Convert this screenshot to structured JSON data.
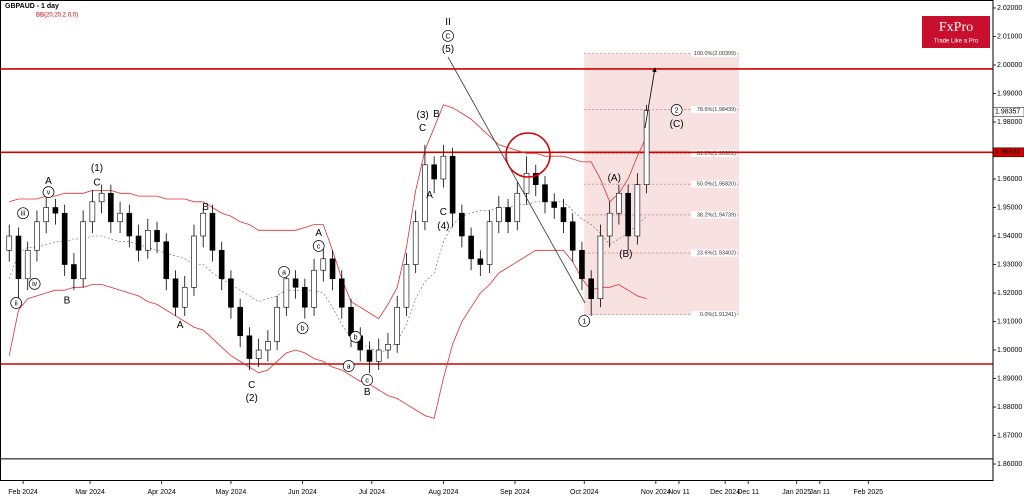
{
  "chart_data": {
    "type": "candlestick",
    "title": "GBPAUD - 1 day",
    "subtitle": "BB(20,20,2.0,0)",
    "logo": {
      "name": "FxPro",
      "tagline": "Trade Like a Pro"
    },
    "xlim": [
      "2024-01-22",
      "2025-03-27"
    ],
    "ylim": [
      1.8544,
      2.0228
    ],
    "xticks": [
      {
        "value": "2024-02-01",
        "label": "Feb 2024"
      },
      {
        "value": "2024-03-01",
        "label": "Mar 2024"
      },
      {
        "value": "2024-04-01",
        "label": "Apr 2024"
      },
      {
        "value": "2024-05-01",
        "label": "May 2024"
      },
      {
        "value": "2024-06-01",
        "label": "Jun 2024"
      },
      {
        "value": "2024-07-01",
        "label": "Jul 2024"
      },
      {
        "value": "2024-08-01",
        "label": "Aug 2024"
      },
      {
        "value": "2024-09-01",
        "label": "Sep 2024"
      },
      {
        "value": "2024-10-01",
        "label": "Oct 2024"
      },
      {
        "value": "2024-11-01",
        "label": "Nov 2024"
      },
      {
        "value": "2024-11-11",
        "label": "Nov 11"
      },
      {
        "value": "2024-12-01",
        "label": "Dec 2024"
      },
      {
        "value": "2024-12-11",
        "label": "Dec 11"
      },
      {
        "value": "2025-01-01",
        "label": "Jan 2025"
      },
      {
        "value": "2025-01-11",
        "label": "Jan 11"
      },
      {
        "value": "2025-02-01",
        "label": "Feb 2025"
      }
    ],
    "yticks": [
      {
        "value": 2.02,
        "label": "2.02000"
      },
      {
        "value": 2.01,
        "label": "2.01000"
      },
      {
        "value": 2.0,
        "label": "2.00000"
      },
      {
        "value": 1.99,
        "label": "1.99000"
      },
      {
        "value": 1.98,
        "label": "1.98000"
      },
      {
        "value": 1.97,
        "label": "1.97000"
      },
      {
        "value": 1.96,
        "label": "1.96000"
      },
      {
        "value": 1.95,
        "label": "1.95000"
      },
      {
        "value": 1.94,
        "label": "1.94000"
      },
      {
        "value": 1.93,
        "label": "1.93000"
      },
      {
        "value": 1.92,
        "label": "1.92000"
      },
      {
        "value": 1.91,
        "label": "1.91000"
      },
      {
        "value": 1.9,
        "label": "1.90000"
      },
      {
        "value": 1.89,
        "label": "1.89000"
      },
      {
        "value": 1.88,
        "label": "1.88000"
      },
      {
        "value": 1.87,
        "label": "1.87000"
      },
      {
        "value": 1.86,
        "label": "1.86000"
      }
    ],
    "x": [
      "2024-01-26",
      "2024-01-30",
      "2024-02-03",
      "2024-02-07",
      "2024-02-11",
      "2024-02-15",
      "2024-02-19",
      "2024-02-23",
      "2024-02-27",
      "2024-03-02",
      "2024-03-06",
      "2024-03-10",
      "2024-03-14",
      "2024-03-18",
      "2024-03-22",
      "2024-03-26",
      "2024-03-30",
      "2024-04-03",
      "2024-04-07",
      "2024-04-11",
      "2024-04-15",
      "2024-04-19",
      "2024-04-23",
      "2024-04-27",
      "2024-05-01",
      "2024-05-05",
      "2024-05-09",
      "2024-05-13",
      "2024-05-17",
      "2024-05-21",
      "2024-05-25",
      "2024-05-29",
      "2024-06-02",
      "2024-06-06",
      "2024-06-10",
      "2024-06-14",
      "2024-06-18",
      "2024-06-22",
      "2024-06-26",
      "2024-06-30",
      "2024-07-04",
      "2024-07-08",
      "2024-07-12",
      "2024-07-16",
      "2024-07-20",
      "2024-07-24",
      "2024-07-28",
      "2024-08-01",
      "2024-08-05",
      "2024-08-09",
      "2024-08-13",
      "2024-08-17",
      "2024-08-21",
      "2024-08-25",
      "2024-08-29",
      "2024-09-02",
      "2024-09-06",
      "2024-09-10",
      "2024-09-14",
      "2024-09-18",
      "2024-09-22",
      "2024-09-26",
      "2024-09-30",
      "2024-10-04",
      "2024-10-08",
      "2024-10-12",
      "2024-10-16",
      "2024-10-20",
      "2024-10-24",
      "2024-10-28"
    ],
    "open": [
      1.935,
      1.94,
      1.925,
      1.935,
      1.945,
      1.95,
      1.948,
      1.93,
      1.925,
      1.945,
      1.952,
      1.955,
      1.945,
      1.948,
      1.94,
      1.935,
      1.942,
      1.938,
      1.925,
      1.915,
      1.922,
      1.94,
      1.948,
      1.935,
      1.925,
      1.915,
      1.905,
      1.897,
      1.9,
      1.903,
      1.915,
      1.925,
      1.922,
      1.915,
      1.928,
      1.932,
      1.925,
      1.915,
      1.905,
      1.9,
      1.896,
      1.9,
      1.902,
      1.915,
      1.93,
      1.945,
      1.965,
      1.96,
      1.968,
      1.948,
      1.94,
      1.932,
      1.93,
      1.945,
      1.95,
      1.945,
      1.955,
      1.962,
      1.958,
      1.952,
      1.95,
      1.945,
      1.935,
      1.925,
      1.918,
      1.94,
      1.948,
      1.955,
      1.94,
      1.958
    ],
    "high": [
      1.944,
      1.943,
      1.938,
      1.949,
      1.956,
      1.953,
      1.951,
      1.934,
      1.949,
      1.956,
      1.958,
      1.958,
      1.952,
      1.951,
      1.944,
      1.946,
      1.945,
      1.941,
      1.928,
      1.926,
      1.944,
      1.95,
      1.951,
      1.938,
      1.928,
      1.918,
      1.908,
      1.904,
      1.907,
      1.919,
      1.929,
      1.928,
      1.925,
      1.932,
      1.937,
      1.935,
      1.928,
      1.918,
      1.908,
      1.903,
      1.904,
      1.906,
      1.919,
      1.934,
      1.949,
      1.972,
      1.968,
      1.972,
      1.971,
      1.951,
      1.943,
      1.935,
      1.949,
      1.954,
      1.953,
      1.959,
      1.968,
      1.965,
      1.961,
      1.955,
      1.953,
      1.948,
      1.938,
      1.928,
      1.944,
      1.952,
      1.958,
      1.958,
      1.962,
      1.986
    ],
    "low": [
      1.931,
      1.918,
      1.921,
      1.931,
      1.941,
      1.944,
      1.926,
      1.921,
      1.922,
      1.941,
      1.948,
      1.941,
      1.941,
      1.936,
      1.931,
      1.932,
      1.934,
      1.921,
      1.912,
      1.912,
      1.919,
      1.936,
      1.931,
      1.921,
      1.911,
      1.901,
      1.893,
      1.894,
      1.896,
      1.9,
      1.912,
      1.918,
      1.911,
      1.912,
      1.924,
      1.921,
      1.911,
      1.901,
      1.896,
      1.892,
      1.893,
      1.897,
      1.899,
      1.912,
      1.927,
      1.942,
      1.955,
      1.957,
      1.943,
      1.936,
      1.928,
      1.926,
      1.927,
      1.941,
      1.941,
      1.942,
      1.951,
      1.954,
      1.948,
      1.946,
      1.941,
      1.931,
      1.921,
      1.912,
      1.915,
      1.936,
      1.944,
      1.935,
      1.937,
      1.955
    ],
    "close": [
      1.94,
      1.925,
      1.935,
      1.945,
      1.95,
      1.948,
      1.93,
      1.925,
      1.945,
      1.952,
      1.955,
      1.945,
      1.948,
      1.94,
      1.935,
      1.942,
      1.938,
      1.925,
      1.915,
      1.922,
      1.94,
      1.948,
      1.935,
      1.925,
      1.915,
      1.905,
      1.897,
      1.9,
      1.903,
      1.915,
      1.925,
      1.922,
      1.915,
      1.928,
      1.932,
      1.925,
      1.915,
      1.905,
      1.9,
      1.896,
      1.9,
      1.902,
      1.915,
      1.93,
      1.945,
      1.965,
      1.96,
      1.968,
      1.948,
      1.94,
      1.932,
      1.93,
      1.945,
      1.95,
      1.945,
      1.955,
      1.962,
      1.958,
      1.952,
      1.95,
      1.945,
      1.935,
      1.925,
      1.918,
      1.94,
      1.948,
      1.955,
      1.94,
      1.958,
      1.984
    ],
    "bollinger": {
      "upper": [
        1.952,
        1.953,
        1.953,
        1.953,
        1.954,
        1.954,
        1.955,
        1.955,
        1.955,
        1.956,
        1.956,
        1.956,
        1.955,
        1.955,
        1.954,
        1.954,
        1.954,
        1.953,
        1.953,
        1.953,
        1.952,
        1.952,
        1.95,
        1.948,
        1.947,
        1.945,
        1.944,
        1.942,
        1.942,
        1.942,
        1.942,
        1.942,
        1.943,
        1.944,
        1.944,
        1.935,
        1.925,
        1.917,
        1.915,
        1.913,
        1.911,
        1.916,
        1.922,
        1.936,
        1.956,
        1.97,
        1.978,
        1.986,
        1.985,
        1.983,
        1.981,
        1.978,
        1.975,
        1.972,
        1.971,
        1.97,
        1.969,
        1.969,
        1.968,
        1.968,
        1.968,
        1.967,
        1.966,
        1.966,
        1.96,
        1.952,
        1.955,
        1.96,
        1.968,
        1.975
      ],
      "middle": [
        1.925,
        1.934,
        1.936,
        1.936,
        1.937,
        1.938,
        1.938,
        1.939,
        1.939,
        1.94,
        1.94,
        1.939,
        1.938,
        1.938,
        1.937,
        1.936,
        1.935,
        1.934,
        1.933,
        1.932,
        1.93,
        1.93,
        1.927,
        1.925,
        1.923,
        1.921,
        1.919,
        1.917,
        1.918,
        1.919,
        1.921,
        1.921,
        1.921,
        1.921,
        1.92,
        1.915,
        1.909,
        1.904,
        1.902,
        1.901,
        1.899,
        1.9,
        1.903,
        1.909,
        1.918,
        1.924,
        1.927,
        1.938,
        1.944,
        1.947,
        1.948,
        1.949,
        1.949,
        1.95,
        1.95,
        1.951,
        1.951,
        1.952,
        1.952,
        1.952,
        1.952,
        1.949,
        1.946,
        1.944,
        1.941,
        1.937,
        1.939,
        1.941,
        1.944,
        1.947
      ],
      "lower": [
        1.898,
        1.914,
        1.918,
        1.919,
        1.92,
        1.921,
        1.921,
        1.922,
        1.922,
        1.923,
        1.923,
        1.922,
        1.921,
        1.92,
        1.919,
        1.917,
        1.916,
        1.914,
        1.912,
        1.91,
        1.908,
        1.907,
        1.904,
        1.901,
        1.898,
        1.896,
        1.894,
        1.892,
        1.893,
        1.896,
        1.899,
        1.9,
        1.899,
        1.897,
        1.896,
        1.894,
        1.893,
        1.891,
        1.889,
        1.888,
        1.886,
        1.884,
        1.883,
        1.881,
        1.879,
        1.877,
        1.876,
        1.89,
        1.902,
        1.91,
        1.915,
        1.92,
        1.923,
        1.927,
        1.929,
        1.931,
        1.933,
        1.935,
        1.935,
        1.935,
        1.935,
        1.931,
        1.925,
        1.921,
        1.922,
        1.922,
        1.923,
        1.921,
        1.919,
        1.918
      ]
    },
    "hlines": [
      {
        "value": 1.9986,
        "color": "#d40000"
      },
      {
        "value": 1.96936,
        "color": "#d40000"
      },
      {
        "value": 1.8951,
        "color": "#d40000"
      },
      {
        "value": 1.8618,
        "color": "#000000"
      }
    ],
    "price_labels": [
      {
        "value": 1.98357,
        "color": "#ffffff"
      },
      {
        "value": 1.96936,
        "color": "#d40000"
      }
    ],
    "fibonacci": {
      "x": [
        "2024-10-01",
        "2024-12-07"
      ],
      "levels": [
        2.00399,
        1.98439,
        1.96901,
        1.9582,
        1.94739,
        1.93402,
        1.91241
      ],
      "level_labels": [
        "100.0%(2.00399)",
        "78.6%(1.98439)",
        "61.8%(1.96901)",
        "50.0%(1.95820)",
        "38.2%(1.94739)",
        "23.6%(1.93402)",
        "0.0%(1.91241)"
      ]
    },
    "annotations": [
      {
        "text": "iii",
        "x": "2024-02-01",
        "y": 1.948,
        "circle": true
      },
      {
        "text": "ii",
        "x": "2024-01-29",
        "y": 1.9165,
        "circle": true
      },
      {
        "text": "iv",
        "x": "2024-02-06",
        "y": 1.9232,
        "circle": true
      },
      {
        "text": "v",
        "x": "2024-02-12",
        "y": 1.9554,
        "circle": true
      },
      {
        "text": "A",
        "x": "2024-02-12",
        "y": 1.9593
      },
      {
        "text": "B",
        "x": "2024-02-20",
        "y": 1.9175
      },
      {
        "text": "(1)",
        "x": "2024-03-04",
        "y": 1.9639
      },
      {
        "text": "C",
        "x": "2024-03-04",
        "y": 1.9589
      },
      {
        "text": "A",
        "x": "2024-04-09",
        "y": 1.9088
      },
      {
        "text": "B",
        "x": "2024-04-20",
        "y": 1.9502
      },
      {
        "text": "C",
        "x": "2024-05-10",
        "y": 1.8877
      },
      {
        "text": "(2)",
        "x": "2024-05-10",
        "y": 1.8832
      },
      {
        "text": "a",
        "x": "2024-05-24",
        "y": 1.9274,
        "circle": true
      },
      {
        "text": "b",
        "x": "2024-06-01",
        "y": 1.9077,
        "circle": true
      },
      {
        "text": "c",
        "x": "2024-06-08",
        "y": 1.9365,
        "circle": true
      },
      {
        "text": "A",
        "x": "2024-06-08",
        "y": 1.9411
      },
      {
        "text": "a",
        "x": "2024-06-21",
        "y": 1.8944,
        "circle": true
      },
      {
        "text": "b",
        "x": "2024-06-24",
        "y": 1.9046,
        "circle": true
      },
      {
        "text": "c",
        "x": "2024-06-29",
        "y": 1.8895,
        "circle": true
      },
      {
        "text": "B",
        "x": "2024-06-29",
        "y": 1.8853
      },
      {
        "text": "(3)",
        "x": "2024-07-23",
        "y": 1.9825
      },
      {
        "text": "C",
        "x": "2024-07-23",
        "y": 1.9779
      },
      {
        "text": "B",
        "x": "2024-07-29",
        "y": 1.9828
      },
      {
        "text": "A",
        "x": "2024-07-26",
        "y": 1.9544
      },
      {
        "text": "C",
        "x": "2024-08-01",
        "y": 1.9484
      },
      {
        "text": "(4)",
        "x": "2024-08-01",
        "y": 1.9435
      },
      {
        "text": "II",
        "x": "2024-08-03",
        "y": 2.0151
      },
      {
        "text": "C",
        "x": "2024-08-03",
        "y": 2.0102,
        "circle": true
      },
      {
        "text": "(5)",
        "x": "2024-08-03",
        "y": 2.0056
      },
      {
        "text": "1",
        "x": "2024-10-01",
        "y": 1.9102,
        "circle": true
      },
      {
        "text": "(A)",
        "x": "2024-10-14",
        "y": 1.9604
      },
      {
        "text": "(B)",
        "x": "2024-10-19",
        "y": 1.9337
      },
      {
        "text": "2",
        "x": "2024-11-10",
        "y": 1.9842,
        "circle": true
      },
      {
        "text": "(C)",
        "x": "2024-11-10",
        "y": 1.9793
      }
    ]
  }
}
